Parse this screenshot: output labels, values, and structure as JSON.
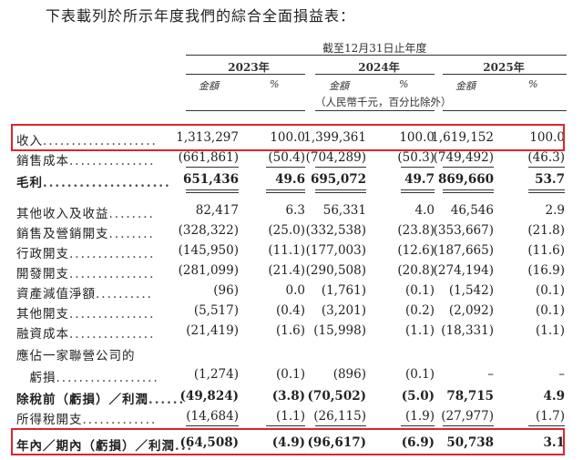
{
  "intro": "下表載列於所示年度我們的綜合全面損益表：",
  "header": {
    "period": "截至12月31日止年度",
    "years": [
      "2023年",
      "2024年",
      "2025年"
    ],
    "amount": "金額",
    "pct": "%",
    "unit_note": "（人民幣千元，百分比除外）"
  },
  "rows": [
    {
      "label": "收入",
      "dots": "....................",
      "bold": false,
      "vals": [
        "1,313,297",
        "100.0",
        "1,399,361",
        "100.0",
        "1,619,152",
        "100.0"
      ]
    },
    {
      "label": "銷售成本",
      "dots": "...............",
      "bold": false,
      "vals": [
        "(661,861)",
        "(50.4)",
        "(704,289)",
        "(50.3)",
        "(749,492)",
        "(46.3)"
      ]
    },
    {
      "label": "毛利",
      "dots": ".....................",
      "bold": true,
      "vals": [
        "651,436",
        "49.6",
        "695,072",
        "49.7",
        "869,660",
        "53.7"
      ]
    },
    {
      "label": "其他收入及收益",
      "dots": "........",
      "bold": false,
      "vals": [
        "82,417",
        "6.3",
        "56,331",
        "4.0",
        "46,546",
        "2.9"
      ]
    },
    {
      "label": "銷售及營銷開支",
      "dots": "........",
      "bold": false,
      "vals": [
        "(328,322)",
        "(25.0)",
        "(332,538)",
        "(23.8)",
        "(353,667)",
        "(21.8)"
      ]
    },
    {
      "label": "行政開支",
      "dots": "...............",
      "bold": false,
      "vals": [
        "(145,950)",
        "(11.1)",
        "(177,003)",
        "(12.6)",
        "(187,665)",
        "(11.6)"
      ]
    },
    {
      "label": "開發開支",
      "dots": "...............",
      "bold": false,
      "vals": [
        "(281,099)",
        "(21.4)",
        "(290,508)",
        "(20.8)",
        "(274,194)",
        "(16.9)"
      ]
    },
    {
      "label": "資產減值淨額",
      "dots": "..........",
      "bold": false,
      "vals": [
        "(96)",
        "0.0",
        "(1,761)",
        "(0.1)",
        "(1,542)",
        "(0.1)"
      ]
    },
    {
      "label": "其他開支",
      "dots": "...............",
      "bold": false,
      "vals": [
        "(5,517)",
        "(0.4)",
        "(3,201)",
        "(0.2)",
        "(2,092)",
        "(0.1)"
      ]
    },
    {
      "label": "融資成本",
      "dots": "...............",
      "bold": false,
      "vals": [
        "(21,419)",
        "(1.6)",
        "(15,998)",
        "(1.1)",
        "(18,331)",
        "(1.1)"
      ]
    },
    {
      "label": "應佔一家聯營公司的",
      "dots": "",
      "bold": false,
      "vals": [
        "",
        "",
        "",
        "",
        "",
        ""
      ]
    },
    {
      "label": "　虧損",
      "dots": "..................",
      "bold": false,
      "vals": [
        "(1,274)",
        "(0.1)",
        "(896)",
        "(0.1)",
        "–",
        "–"
      ]
    },
    {
      "label": "除稅前（虧損）／利潤",
      "dots": "......",
      "bold": true,
      "vals": [
        "(49,824)",
        "(3.8)",
        "(70,502)",
        "(5.0)",
        "78,715",
        "4.9"
      ]
    },
    {
      "label": "所得稅開支",
      "dots": ".............",
      "bold": false,
      "vals": [
        "(14,684)",
        "(1.1)",
        "(26,115)",
        "(1.9)",
        "(27,977)",
        "(1.7)"
      ]
    },
    {
      "label": "年內／期內（虧損）／利潤",
      "dots": "...",
      "bold": true,
      "vals": [
        "(64,508)",
        "(4.9)",
        "(96,617)",
        "(6.9)",
        "50,738",
        "3.1"
      ]
    }
  ],
  "highlight_color": "#d9262c"
}
